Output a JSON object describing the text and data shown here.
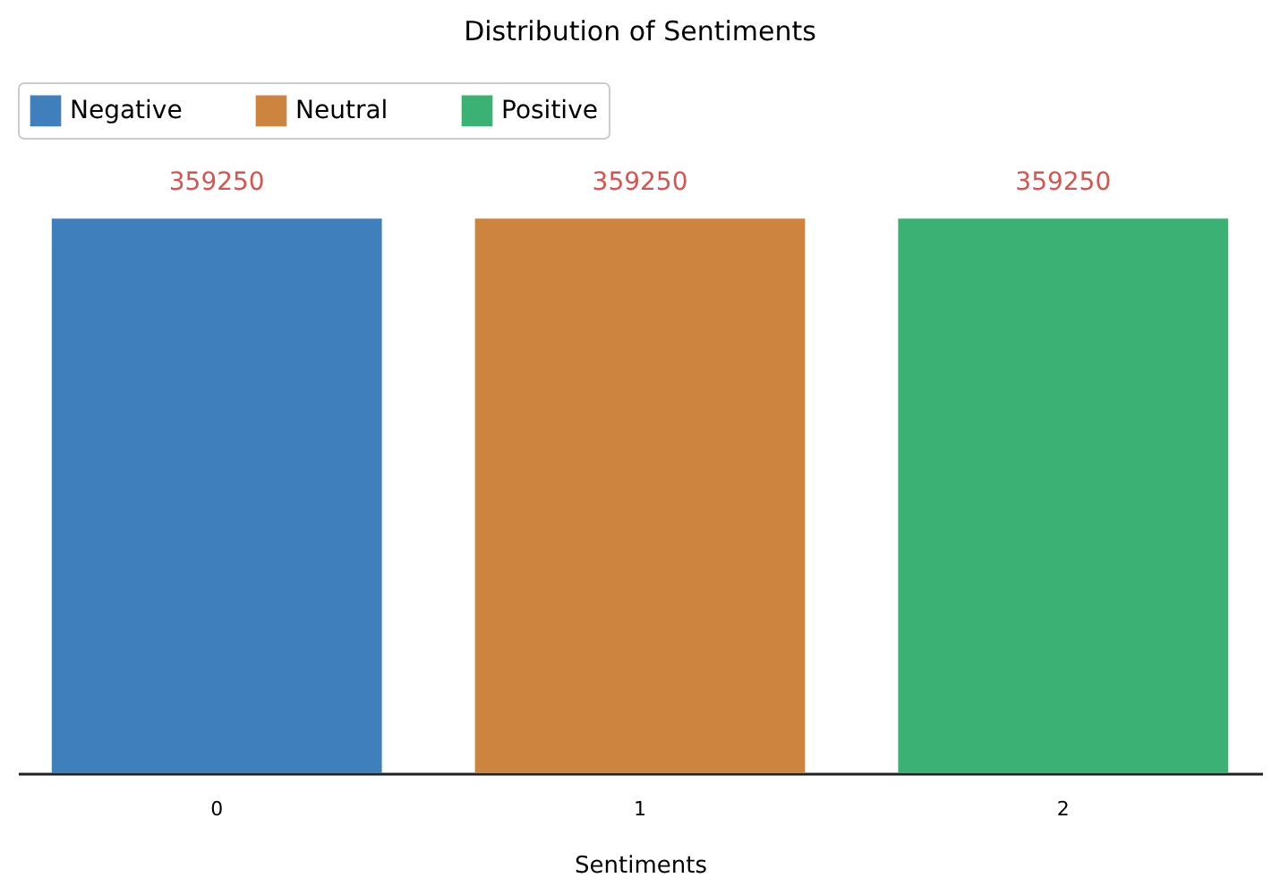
{
  "chart_data": {
    "type": "bar",
    "title": "Distribution of Sentiments",
    "xlabel": "Sentiments",
    "categories": [
      "0",
      "1",
      "2"
    ],
    "series": [
      {
        "name": "Negative",
        "color": "#3f7fbc",
        "values": [
          359250,
          null,
          null
        ]
      },
      {
        "name": "Neutral",
        "color": "#cc843f",
        "values": [
          null,
          359250,
          null
        ]
      },
      {
        "name": "Positive",
        "color": "#3bb273",
        "values": [
          null,
          null,
          359250
        ]
      }
    ],
    "data_labels": true,
    "legend": "top",
    "grid": false
  }
}
